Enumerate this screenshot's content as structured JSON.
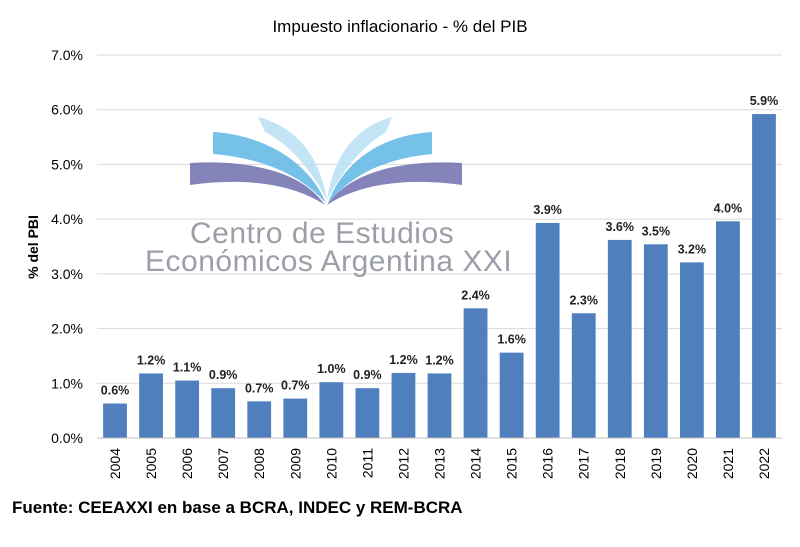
{
  "chart_data": {
    "type": "bar",
    "title": "Impuesto inflacionario - % del PIB",
    "ylabel": "% del PBI",
    "xlabel": "",
    "ylim": [
      0,
      7
    ],
    "yticks": [
      0,
      1,
      2,
      3,
      4,
      5,
      6,
      7
    ],
    "ytick_labels": [
      "0.0%",
      "1.0%",
      "2.0%",
      "3.0%",
      "4.0%",
      "5.0%",
      "6.0%",
      "7.0%"
    ],
    "grid": true,
    "categories": [
      "2004",
      "2005",
      "2006",
      "2007",
      "2008",
      "2009",
      "2010",
      "2011",
      "2012",
      "2013",
      "2014",
      "2015",
      "2016",
      "2017",
      "2018",
      "2019",
      "2020",
      "2021",
      "2022"
    ],
    "values": [
      0.63,
      1.18,
      1.05,
      0.91,
      0.67,
      0.72,
      1.02,
      0.91,
      1.19,
      1.18,
      2.37,
      1.56,
      3.93,
      2.28,
      3.62,
      3.54,
      3.21,
      3.96,
      5.92
    ],
    "data_labels": [
      "0.6%",
      "1.2%",
      "1.1%",
      "0.9%",
      "0.7%",
      "0.7%",
      "1.0%",
      "0.9%",
      "1.2%",
      "1.2%",
      "2.4%",
      "1.6%",
      "3.9%",
      "2.3%",
      "3.6%",
      "3.5%",
      "3.2%",
      "4.0%",
      "5.9%"
    ],
    "bar_color": "#4f7fbd"
  },
  "watermark": {
    "line1": "Centro de Estudios",
    "line2": "Económicos Argentina XXI"
  },
  "footer": "Fuente: CEEAXXI en base a BCRA, INDEC y REM-BCRA"
}
